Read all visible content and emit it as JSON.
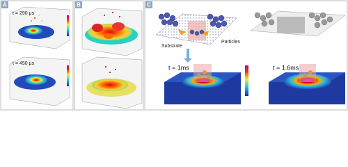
{
  "panels": [
    {
      "label": "A",
      "times": [
        "t = 290 μs",
        "t = 450 μs"
      ]
    },
    {
      "label": "B"
    },
    {
      "label": "C",
      "labels": [
        "Substrate",
        "Particles"
      ],
      "times": [
        "t = 1ms",
        "t = 1.6ms"
      ]
    }
  ]
}
